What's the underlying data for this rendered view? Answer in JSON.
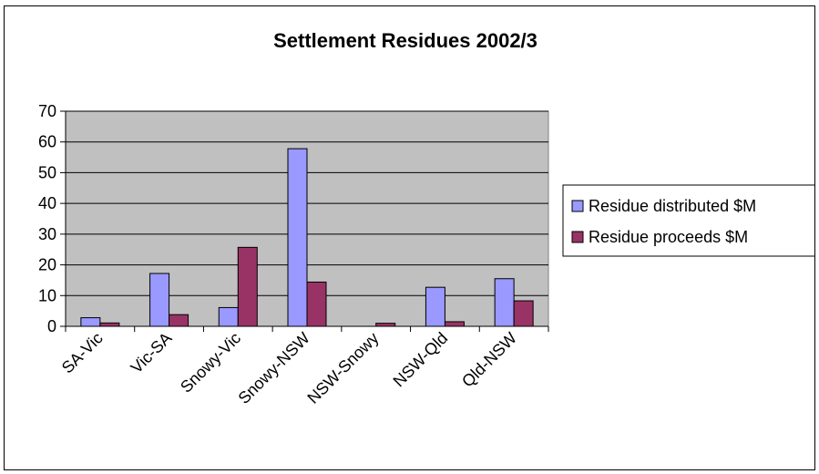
{
  "chart_data": {
    "type": "bar",
    "title": "Settlement Residues 2002/3",
    "xlabel": "",
    "ylabel": "",
    "categories": [
      "SA-Vic",
      "Vic-SA",
      "Snowy-Vic",
      "Snowy-NSW",
      "NSW-Snowy",
      "NSW-Qld",
      "Qld-NSW"
    ],
    "series": [
      {
        "name": "Residue distributed $M",
        "color": "#9999ff",
        "values": [
          2.8,
          17.2,
          6.1,
          57.8,
          0,
          12.7,
          15.5
        ]
      },
      {
        "name": "Residue proceeds $M",
        "color": "#993366",
        "values": [
          1.1,
          3.8,
          25.7,
          14.4,
          1.0,
          1.5,
          8.3
        ]
      }
    ],
    "ylim": [
      0,
      70
    ],
    "yticks": [
      0,
      10,
      20,
      30,
      40,
      50,
      60,
      70
    ],
    "grid": true,
    "plot_background": "#c0c0c0",
    "legend_position": "right"
  }
}
